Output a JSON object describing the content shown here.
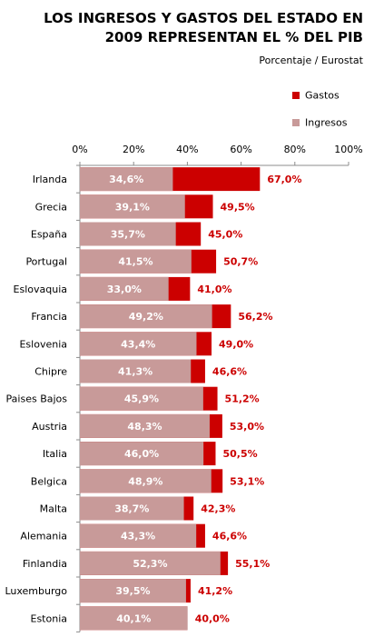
{
  "title_lines": [
    "LOS INGRESOS Y GASTOS DEL ESTADO EN",
    "2009 REPRESENTAN EL % DEL PIB"
  ],
  "subtitle": "Porcentaje / Eurostat",
  "legend": [
    {
      "label": "Gastos",
      "color": "#cc0000"
    },
    {
      "label": "Ingresos",
      "color": "#c89a99"
    }
  ],
  "chart_data": {
    "type": "bar",
    "orientation": "horizontal",
    "title": "LOS INGRESOS Y GASTOS DEL ESTADO EN 2009 REPRESENTAN EL % DEL PIB",
    "subtitle": "Porcentaje / Eurostat",
    "xlim": [
      0,
      100
    ],
    "x_ticks": [
      "0%",
      "20%",
      "40%",
      "60%",
      "80%",
      "100%"
    ],
    "x_tick_values": [
      0,
      20,
      40,
      60,
      80,
      100
    ],
    "axis_position": "top",
    "grid": false,
    "legend_position": "top-right",
    "categories": [
      "Irlanda",
      "Grecia",
      "España",
      "Portugal",
      "Eslovaquia",
      "Francia",
      "Eslovenia",
      "Chipre",
      "Paises Bajos",
      "Austria",
      "Italia",
      "Belgica",
      "Malta",
      "Alemania",
      "Finlandia",
      "Luxemburgo",
      "Estonia"
    ],
    "series": [
      {
        "name": "Ingresos",
        "color": "#c89a99",
        "values": [
          34.6,
          39.1,
          35.7,
          41.5,
          33.0,
          49.2,
          43.4,
          41.3,
          45.9,
          48.3,
          46.0,
          48.9,
          38.7,
          43.3,
          52.3,
          39.5,
          40.1
        ],
        "labels": [
          "34,6%",
          "39,1%",
          "35,7%",
          "41,5%",
          "33,0%",
          "49,2%",
          "43,4%",
          "41,3%",
          "45,9%",
          "48,3%",
          "46,0%",
          "48,9%",
          "38,7%",
          "43,3%",
          "52,3%",
          "39,5%",
          "40,1%"
        ]
      },
      {
        "name": "Gastos",
        "color": "#cc0000",
        "values": [
          67.0,
          49.5,
          45.0,
          50.7,
          41.0,
          56.2,
          49.0,
          46.6,
          51.2,
          53.0,
          50.5,
          53.1,
          42.3,
          46.6,
          55.1,
          41.2,
          40.0
        ],
        "labels": [
          "67,0%",
          "49,5%",
          "45,0%",
          "50,7%",
          "41,0%",
          "56,2%",
          "49,0%",
          "46,6%",
          "51,2%",
          "53,0%",
          "50,5%",
          "53,1%",
          "42,3%",
          "46,6%",
          "55,1%",
          "41,2%",
          "40,0%"
        ]
      }
    ]
  }
}
